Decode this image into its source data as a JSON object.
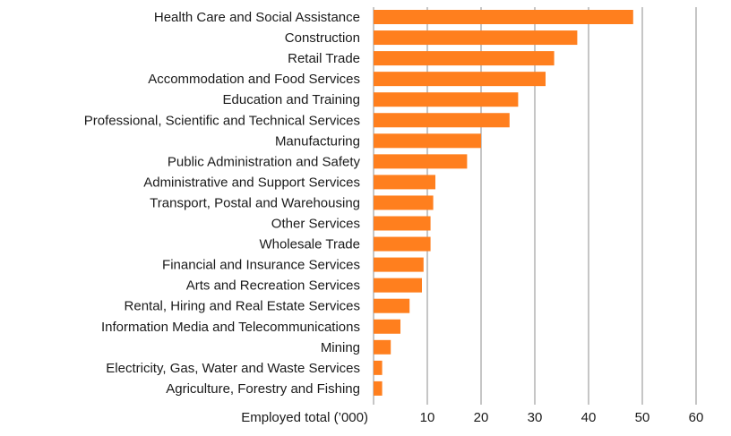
{
  "chart_data": {
    "type": "bar",
    "orientation": "horizontal",
    "title": "",
    "xlabel": "Employed total (’000)",
    "ylabel": "",
    "xlim": [
      0,
      60
    ],
    "x_ticks": [
      10,
      20,
      30,
      40,
      50,
      60
    ],
    "grid": true,
    "legend": "none",
    "bar_color": "#FF7F1E",
    "categories": [
      "Health Care and Social Assistance",
      "Construction",
      "Retail Trade",
      "Accommodation and Food Services",
      "Education and Training",
      "Professional, Scientific and Technical Services",
      "Manufacturing",
      "Public Administration and Safety",
      "Administrative and Support Services",
      "Transport, Postal and Warehousing",
      "Other Services",
      "Wholesale Trade",
      "Financial and Insurance Services",
      "Arts and Recreation Services",
      "Rental, Hiring and Real Estate Services",
      "Information Media and Telecommunications",
      "Mining",
      "Electricity, Gas, Water and Waste Services",
      "Agriculture, Forestry and Fishing"
    ],
    "values": [
      48.3,
      37.9,
      33.6,
      32.0,
      26.9,
      25.3,
      20.0,
      17.4,
      11.5,
      11.1,
      10.6,
      10.6,
      9.3,
      9.0,
      6.7,
      5.0,
      3.2,
      1.6,
      1.6
    ]
  }
}
